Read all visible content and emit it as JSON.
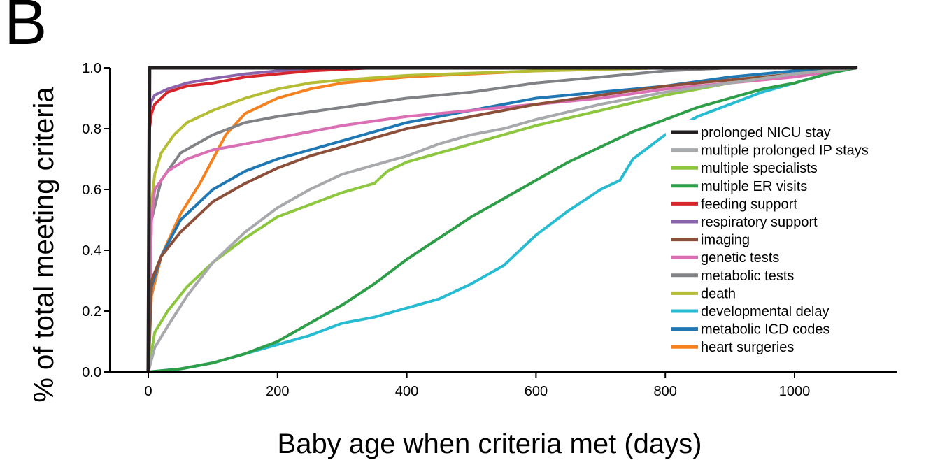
{
  "panel_label": "B",
  "chart_data": {
    "type": "line",
    "title": "",
    "xlabel": "Baby age when criteria met (days)",
    "ylabel": "% of total meeting criteria",
    "xlim": [
      -40,
      1150
    ],
    "ylim": [
      0,
      1.0
    ],
    "xticks": [
      0,
      200,
      400,
      600,
      800,
      1000
    ],
    "xtick_labels": [
      "0",
      "200",
      "400",
      "600",
      "800",
      "1000"
    ],
    "yticks": [
      0.0,
      0.2,
      0.4,
      0.6,
      0.8,
      1.0
    ],
    "ytick_labels": [
      "0.0",
      "0.2",
      "0.4",
      "0.6",
      "0.8",
      "1.0"
    ],
    "grid": false,
    "legend_position": "right",
    "series": [
      {
        "name": "prolonged NICU stay",
        "color": "#231f20",
        "x": [
          0,
          2,
          5,
          1095
        ],
        "y": [
          0,
          1.0,
          1.0,
          1.0
        ]
      },
      {
        "name": "multiple prolonged IP stays",
        "color": "#a7a9ac",
        "x": [
          0,
          10,
          30,
          60,
          100,
          150,
          200,
          250,
          300,
          350,
          400,
          450,
          500,
          550,
          600,
          700,
          800,
          900,
          1000,
          1095
        ],
        "y": [
          0,
          0.08,
          0.15,
          0.25,
          0.36,
          0.46,
          0.54,
          0.6,
          0.65,
          0.68,
          0.71,
          0.75,
          0.78,
          0.8,
          0.83,
          0.88,
          0.92,
          0.95,
          0.98,
          1.0
        ]
      },
      {
        "name": "multiple specialists",
        "color": "#8dc63f",
        "x": [
          0,
          10,
          30,
          60,
          100,
          150,
          200,
          250,
          300,
          350,
          370,
          400,
          450,
          500,
          550,
          600,
          700,
          800,
          900,
          1000,
          1095
        ],
        "y": [
          0,
          0.13,
          0.2,
          0.28,
          0.36,
          0.44,
          0.51,
          0.55,
          0.59,
          0.62,
          0.66,
          0.69,
          0.72,
          0.75,
          0.78,
          0.81,
          0.86,
          0.91,
          0.95,
          0.98,
          1.0
        ]
      },
      {
        "name": "multiple ER visits",
        "color": "#2e9e48",
        "x": [
          0,
          50,
          100,
          150,
          200,
          250,
          300,
          350,
          400,
          450,
          500,
          550,
          600,
          650,
          700,
          750,
          800,
          850,
          900,
          950,
          1000,
          1050,
          1095
        ],
        "y": [
          0,
          0.01,
          0.03,
          0.06,
          0.1,
          0.16,
          0.22,
          0.29,
          0.37,
          0.44,
          0.51,
          0.57,
          0.63,
          0.69,
          0.74,
          0.79,
          0.83,
          0.87,
          0.9,
          0.93,
          0.95,
          0.98,
          1.0
        ]
      },
      {
        "name": "feeding support",
        "color": "#d7262b",
        "x": [
          0,
          1,
          2,
          5,
          10,
          30,
          60,
          100,
          150,
          200,
          250,
          300,
          350,
          400,
          500,
          600,
          800,
          1095
        ],
        "y": [
          0,
          0.5,
          0.8,
          0.85,
          0.88,
          0.92,
          0.94,
          0.95,
          0.97,
          0.98,
          0.99,
          0.995,
          1.0,
          1.0,
          1.0,
          1.0,
          1.0,
          1.0
        ]
      },
      {
        "name": "respiratory support",
        "color": "#8a63ad",
        "x": [
          0,
          1,
          2,
          5,
          10,
          30,
          60,
          100,
          150,
          200,
          250,
          300,
          400,
          600,
          1095
        ],
        "y": [
          0,
          0.6,
          0.86,
          0.89,
          0.91,
          0.93,
          0.95,
          0.965,
          0.98,
          0.99,
          0.995,
          1.0,
          1.0,
          1.0,
          1.0
        ]
      },
      {
        "name": "imaging",
        "color": "#8b4f3a",
        "x": [
          0,
          5,
          20,
          50,
          100,
          150,
          200,
          250,
          300,
          350,
          400,
          500,
          600,
          700,
          800,
          900,
          1000,
          1095
        ],
        "y": [
          0,
          0.3,
          0.38,
          0.46,
          0.56,
          0.62,
          0.67,
          0.71,
          0.74,
          0.77,
          0.8,
          0.84,
          0.88,
          0.91,
          0.94,
          0.96,
          0.98,
          1.0
        ]
      },
      {
        "name": "genetic tests",
        "color": "#da6fb4",
        "x": [
          0,
          5,
          10,
          30,
          60,
          100,
          150,
          200,
          300,
          400,
          500,
          600,
          700,
          800,
          900,
          1000,
          1095
        ],
        "y": [
          0,
          0.5,
          0.6,
          0.66,
          0.7,
          0.73,
          0.75,
          0.77,
          0.81,
          0.84,
          0.86,
          0.88,
          0.9,
          0.93,
          0.95,
          0.97,
          1.0
        ]
      },
      {
        "name": "metabolic tests",
        "color": "#808285",
        "x": [
          0,
          5,
          20,
          50,
          100,
          150,
          200,
          300,
          400,
          500,
          600,
          700,
          800,
          900,
          1000,
          1095
        ],
        "y": [
          0,
          0.5,
          0.63,
          0.72,
          0.78,
          0.82,
          0.84,
          0.87,
          0.9,
          0.92,
          0.95,
          0.97,
          0.99,
          1.0,
          1.0,
          1.0
        ]
      },
      {
        "name": "death",
        "color": "#b5bd35",
        "x": [
          0,
          1,
          5,
          10,
          20,
          40,
          60,
          100,
          150,
          200,
          250,
          300,
          400,
          600,
          800,
          1095
        ],
        "y": [
          0,
          0.3,
          0.55,
          0.65,
          0.72,
          0.78,
          0.82,
          0.86,
          0.9,
          0.93,
          0.95,
          0.96,
          0.975,
          0.99,
          1.0,
          1.0
        ]
      },
      {
        "name": "developmental delay",
        "color": "#27bcd1",
        "x": [
          0,
          50,
          100,
          150,
          200,
          250,
          300,
          350,
          400,
          450,
          500,
          550,
          600,
          650,
          700,
          730,
          750,
          800,
          850,
          900,
          950,
          1000,
          1050,
          1095
        ],
        "y": [
          0,
          0.01,
          0.03,
          0.06,
          0.09,
          0.12,
          0.16,
          0.18,
          0.21,
          0.24,
          0.29,
          0.35,
          0.45,
          0.53,
          0.6,
          0.63,
          0.7,
          0.78,
          0.84,
          0.88,
          0.92,
          0.95,
          0.98,
          1.0
        ]
      },
      {
        "name": "metabolic ICD codes",
        "color": "#1f78b4",
        "x": [
          0,
          5,
          20,
          50,
          100,
          150,
          200,
          300,
          400,
          500,
          600,
          700,
          800,
          900,
          1000,
          1095
        ],
        "y": [
          0,
          0.28,
          0.38,
          0.5,
          0.6,
          0.66,
          0.7,
          0.76,
          0.82,
          0.86,
          0.9,
          0.92,
          0.94,
          0.97,
          0.99,
          1.0
        ]
      },
      {
        "name": "heart surgeries",
        "color": "#f58220",
        "x": [
          0,
          5,
          20,
          50,
          80,
          100,
          120,
          150,
          200,
          250,
          300,
          400,
          500,
          600,
          800,
          1000,
          1095
        ],
        "y": [
          0,
          0.25,
          0.38,
          0.52,
          0.62,
          0.7,
          0.78,
          0.85,
          0.9,
          0.93,
          0.95,
          0.97,
          0.98,
          0.99,
          1.0,
          1.0,
          1.0
        ]
      }
    ]
  }
}
